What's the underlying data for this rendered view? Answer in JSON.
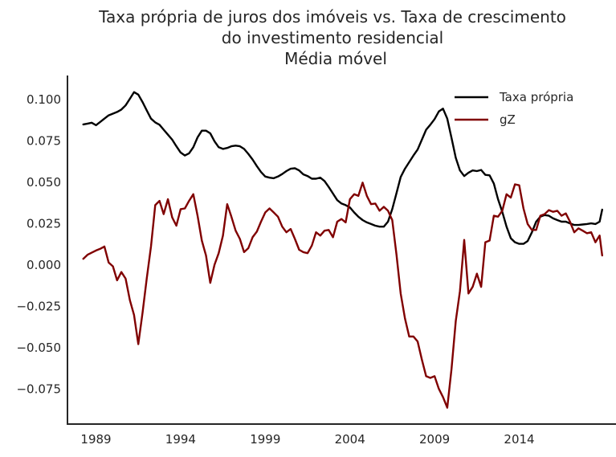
{
  "chart_data": {
    "type": "line",
    "title_lines": [
      "Taxa própria de juros dos imóveis vs. Taxa de crescimento",
      "do investimento residencial",
      "Média móvel"
    ],
    "xlabel": "",
    "ylabel": "",
    "xlim": [
      1987.5,
      2018.9
    ],
    "ylim": [
      -0.095,
      0.115
    ],
    "x_ticks": [
      1989,
      1994,
      1999,
      2004,
      2009,
      2014
    ],
    "y_ticks": [
      -0.075,
      -0.05,
      -0.025,
      0.0,
      0.025,
      0.05,
      0.075,
      0.1
    ],
    "y_tick_labels": [
      "−0.075",
      "−0.050",
      "−0.025",
      "0.000",
      "0.025",
      "0.050",
      "0.075",
      "0.100"
    ],
    "grid": false,
    "legend": {
      "position": "top-right"
    },
    "series": [
      {
        "name": "Taxa própria",
        "color": "#000000",
        "points": [
          [
            1988.25,
            0.085
          ],
          [
            1988.5,
            0.0855
          ],
          [
            1988.75,
            0.086
          ],
          [
            1989.0,
            0.0845
          ],
          [
            1989.25,
            0.0865
          ],
          [
            1989.5,
            0.0885
          ],
          [
            1989.75,
            0.0905
          ],
          [
            1990.0,
            0.0915
          ],
          [
            1990.25,
            0.0925
          ],
          [
            1990.5,
            0.094
          ],
          [
            1990.75,
            0.0965
          ],
          [
            1991.0,
            0.1005
          ],
          [
            1991.25,
            0.1045
          ],
          [
            1991.5,
            0.103
          ],
          [
            1991.75,
            0.0985
          ],
          [
            1992.0,
            0.0935
          ],
          [
            1992.25,
            0.0885
          ],
          [
            1992.5,
            0.0862
          ],
          [
            1992.75,
            0.0848
          ],
          [
            1993.0,
            0.0818
          ],
          [
            1993.25,
            0.0788
          ],
          [
            1993.5,
            0.0758
          ],
          [
            1993.75,
            0.0718
          ],
          [
            1994.0,
            0.068
          ],
          [
            1994.25,
            0.0662
          ],
          [
            1994.5,
            0.0675
          ],
          [
            1994.75,
            0.0712
          ],
          [
            1995.0,
            0.0772
          ],
          [
            1995.25,
            0.0812
          ],
          [
            1995.5,
            0.0812
          ],
          [
            1995.75,
            0.0796
          ],
          [
            1996.0,
            0.0748
          ],
          [
            1996.25,
            0.0712
          ],
          [
            1996.5,
            0.0702
          ],
          [
            1996.75,
            0.0708
          ],
          [
            1997.0,
            0.0718
          ],
          [
            1997.25,
            0.0722
          ],
          [
            1997.5,
            0.0718
          ],
          [
            1997.75,
            0.0702
          ],
          [
            1998.0,
            0.0672
          ],
          [
            1998.25,
            0.0638
          ],
          [
            1998.5,
            0.0598
          ],
          [
            1998.75,
            0.0562
          ],
          [
            1999.0,
            0.0535
          ],
          [
            1999.25,
            0.0528
          ],
          [
            1999.5,
            0.0525
          ],
          [
            1999.75,
            0.0535
          ],
          [
            2000.0,
            0.055
          ],
          [
            2000.25,
            0.0568
          ],
          [
            2000.5,
            0.0582
          ],
          [
            2000.75,
            0.0585
          ],
          [
            2001.0,
            0.0572
          ],
          [
            2001.25,
            0.0548
          ],
          [
            2001.5,
            0.0538
          ],
          [
            2001.75,
            0.0522
          ],
          [
            2002.0,
            0.0522
          ],
          [
            2002.25,
            0.0528
          ],
          [
            2002.5,
            0.0508
          ],
          [
            2002.75,
            0.0472
          ],
          [
            2003.0,
            0.0432
          ],
          [
            2003.25,
            0.0392
          ],
          [
            2003.5,
            0.0372
          ],
          [
            2003.75,
            0.0362
          ],
          [
            2004.0,
            0.0348
          ],
          [
            2004.25,
            0.0318
          ],
          [
            2004.5,
            0.0292
          ],
          [
            2004.75,
            0.0272
          ],
          [
            2005.0,
            0.0258
          ],
          [
            2005.25,
            0.0248
          ],
          [
            2005.5,
            0.0238
          ],
          [
            2005.75,
            0.0232
          ],
          [
            2006.0,
            0.0232
          ],
          [
            2006.25,
            0.0262
          ],
          [
            2006.5,
            0.0338
          ],
          [
            2006.75,
            0.0435
          ],
          [
            2007.0,
            0.0532
          ],
          [
            2007.25,
            0.0582
          ],
          [
            2007.5,
            0.0622
          ],
          [
            2007.75,
            0.0662
          ],
          [
            2008.0,
            0.0698
          ],
          [
            2008.25,
            0.0758
          ],
          [
            2008.5,
            0.0818
          ],
          [
            2008.75,
            0.0848
          ],
          [
            2009.0,
            0.0882
          ],
          [
            2009.25,
            0.0928
          ],
          [
            2009.5,
            0.0945
          ],
          [
            2009.75,
            0.0885
          ],
          [
            2010.0,
            0.0768
          ],
          [
            2010.25,
            0.0648
          ],
          [
            2010.5,
            0.0572
          ],
          [
            2010.75,
            0.0538
          ],
          [
            2011.0,
            0.0558
          ],
          [
            2011.25,
            0.0572
          ],
          [
            2011.5,
            0.0568
          ],
          [
            2011.75,
            0.0575
          ],
          [
            2012.0,
            0.0545
          ],
          [
            2012.25,
            0.0542
          ],
          [
            2012.5,
            0.0492
          ],
          [
            2012.75,
            0.0398
          ],
          [
            2013.0,
            0.0322
          ],
          [
            2013.25,
            0.0232
          ],
          [
            2013.5,
            0.0162
          ],
          [
            2013.75,
            0.0138
          ],
          [
            2014.0,
            0.0128
          ],
          [
            2014.25,
            0.0128
          ],
          [
            2014.5,
            0.0145
          ],
          [
            2014.75,
            0.0198
          ],
          [
            2015.0,
            0.0262
          ],
          [
            2015.25,
            0.0292
          ],
          [
            2015.5,
            0.0302
          ],
          [
            2015.75,
            0.0298
          ],
          [
            2016.0,
            0.0282
          ],
          [
            2016.25,
            0.0272
          ],
          [
            2016.5,
            0.0262
          ],
          [
            2016.75,
            0.0262
          ],
          [
            2017.0,
            0.0252
          ],
          [
            2017.25,
            0.0242
          ],
          [
            2017.5,
            0.0242
          ],
          [
            2017.75,
            0.0245
          ],
          [
            2018.0,
            0.0248
          ],
          [
            2018.25,
            0.0252
          ],
          [
            2018.5,
            0.0248
          ],
          [
            2018.75,
            0.0262
          ],
          [
            2018.9,
            0.0335
          ]
        ]
      },
      {
        "name": "gZ",
        "color": "#800000",
        "points": [
          [
            1988.25,
            0.0038
          ],
          [
            1988.5,
            0.0062
          ],
          [
            1988.75,
            0.0075
          ],
          [
            1989.0,
            0.0088
          ],
          [
            1989.25,
            0.0098
          ],
          [
            1989.5,
            0.0112
          ],
          [
            1989.75,
            0.0015
          ],
          [
            1990.0,
            -0.0008
          ],
          [
            1990.25,
            -0.0092
          ],
          [
            1990.5,
            -0.0042
          ],
          [
            1990.75,
            -0.0082
          ],
          [
            1991.0,
            -0.0212
          ],
          [
            1991.25,
            -0.0302
          ],
          [
            1991.5,
            -0.0478
          ],
          [
            1991.75,
            -0.0288
          ],
          [
            1992.0,
            -0.0082
          ],
          [
            1992.25,
            0.0112
          ],
          [
            1992.5,
            0.0362
          ],
          [
            1992.75,
            0.0388
          ],
          [
            1993.0,
            0.0308
          ],
          [
            1993.25,
            0.0398
          ],
          [
            1993.5,
            0.0288
          ],
          [
            1993.75,
            0.0238
          ],
          [
            1994.0,
            0.0338
          ],
          [
            1994.25,
            0.0342
          ],
          [
            1994.5,
            0.0388
          ],
          [
            1994.75,
            0.0428
          ],
          [
            1995.0,
            0.0298
          ],
          [
            1995.25,
            0.0148
          ],
          [
            1995.5,
            0.0058
          ],
          [
            1995.75,
            -0.0108
          ],
          [
            1996.0,
            0.0002
          ],
          [
            1996.25,
            0.0072
          ],
          [
            1996.5,
            0.0178
          ],
          [
            1996.75,
            0.0368
          ],
          [
            1997.0,
            0.0292
          ],
          [
            1997.25,
            0.0208
          ],
          [
            1997.5,
            0.0158
          ],
          [
            1997.75,
            0.0078
          ],
          [
            1998.0,
            0.0102
          ],
          [
            1998.25,
            0.0168
          ],
          [
            1998.5,
            0.0202
          ],
          [
            1998.75,
            0.0262
          ],
          [
            1999.0,
            0.0318
          ],
          [
            1999.25,
            0.0342
          ],
          [
            1999.5,
            0.0318
          ],
          [
            1999.75,
            0.0292
          ],
          [
            2000.0,
            0.0232
          ],
          [
            2000.25,
            0.0198
          ],
          [
            2000.5,
            0.0218
          ],
          [
            2000.75,
            0.0158
          ],
          [
            2001.0,
            0.0092
          ],
          [
            2001.25,
            0.0078
          ],
          [
            2001.5,
            0.0072
          ],
          [
            2001.75,
            0.0118
          ],
          [
            2002.0,
            0.0198
          ],
          [
            2002.25,
            0.0178
          ],
          [
            2002.5,
            0.0208
          ],
          [
            2002.75,
            0.0212
          ],
          [
            2003.0,
            0.0168
          ],
          [
            2003.25,
            0.0262
          ],
          [
            2003.5,
            0.0278
          ],
          [
            2003.75,
            0.0258
          ],
          [
            2004.0,
            0.0398
          ],
          [
            2004.25,
            0.0428
          ],
          [
            2004.5,
            0.0418
          ],
          [
            2004.75,
            0.0498
          ],
          [
            2005.0,
            0.0418
          ],
          [
            2005.25,
            0.0368
          ],
          [
            2005.5,
            0.0372
          ],
          [
            2005.75,
            0.0328
          ],
          [
            2006.0,
            0.0352
          ],
          [
            2006.25,
            0.0328
          ],
          [
            2006.5,
            0.0272
          ],
          [
            2006.75,
            0.0062
          ],
          [
            2007.0,
            -0.0172
          ],
          [
            2007.25,
            -0.0322
          ],
          [
            2007.5,
            -0.0432
          ],
          [
            2007.75,
            -0.0432
          ],
          [
            2008.0,
            -0.0462
          ],
          [
            2008.25,
            -0.0572
          ],
          [
            2008.5,
            -0.0672
          ],
          [
            2008.75,
            -0.0682
          ],
          [
            2009.0,
            -0.0672
          ],
          [
            2009.25,
            -0.0748
          ],
          [
            2009.5,
            -0.0798
          ],
          [
            2009.75,
            -0.0862
          ],
          [
            2010.0,
            -0.0628
          ],
          [
            2010.25,
            -0.0338
          ],
          [
            2010.5,
            -0.0158
          ],
          [
            2010.75,
            0.0152
          ],
          [
            2011.0,
            -0.0172
          ],
          [
            2011.25,
            -0.0132
          ],
          [
            2011.5,
            -0.0052
          ],
          [
            2011.75,
            -0.0132
          ],
          [
            2012.0,
            0.0138
          ],
          [
            2012.25,
            0.0148
          ],
          [
            2012.5,
            0.0298
          ],
          [
            2012.75,
            0.0292
          ],
          [
            2013.0,
            0.0328
          ],
          [
            2013.25,
            0.0428
          ],
          [
            2013.5,
            0.0408
          ],
          [
            2013.75,
            0.0488
          ],
          [
            2014.0,
            0.0482
          ],
          [
            2014.25,
            0.0342
          ],
          [
            2014.5,
            0.0248
          ],
          [
            2014.75,
            0.0212
          ],
          [
            2015.0,
            0.0212
          ],
          [
            2015.25,
            0.0298
          ],
          [
            2015.5,
            0.0308
          ],
          [
            2015.75,
            0.0332
          ],
          [
            2016.0,
            0.0322
          ],
          [
            2016.25,
            0.0328
          ],
          [
            2016.5,
            0.0298
          ],
          [
            2016.75,
            0.0312
          ],
          [
            2017.0,
            0.0262
          ],
          [
            2017.25,
            0.0198
          ],
          [
            2017.5,
            0.0222
          ],
          [
            2017.75,
            0.0208
          ],
          [
            2018.0,
            0.0192
          ],
          [
            2018.25,
            0.0198
          ],
          [
            2018.5,
            0.0138
          ],
          [
            2018.75,
            0.0178
          ],
          [
            2018.9,
            0.0058
          ]
        ]
      }
    ]
  }
}
